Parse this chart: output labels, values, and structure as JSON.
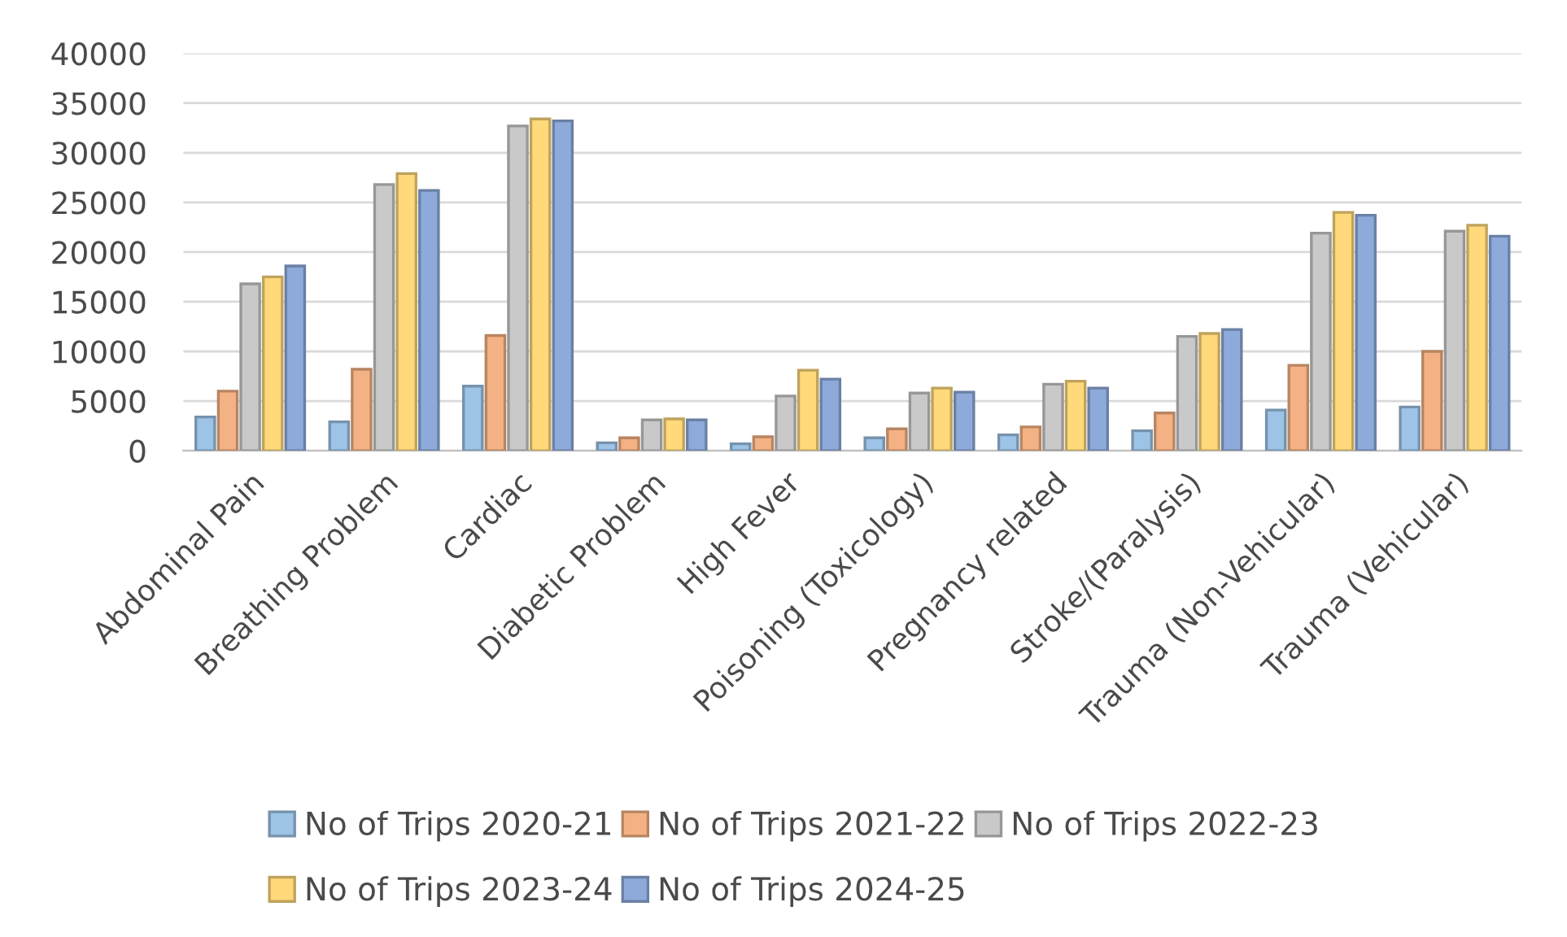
{
  "chart_data": {
    "type": "bar",
    "categories": [
      "Abdominal Pain",
      "Breathing Problem",
      "Cardiac",
      "Diabetic Problem",
      "High Fever",
      "Poisoning (Toxicology)",
      "Pregnancy related",
      "Stroke/(Paralysis)",
      "Trauma (Non-Vehicular)",
      "Trauma (Vehicular)"
    ],
    "series": [
      {
        "name": "No of Trips 2020-21",
        "color": "#9dc3e6",
        "values": [
          3400,
          2900,
          6500,
          800,
          700,
          1300,
          1600,
          2000,
          4100,
          4400
        ]
      },
      {
        "name": "No of Trips 2021-22",
        "color": "#f4b183",
        "values": [
          6000,
          8200,
          11600,
          1300,
          1400,
          2200,
          2400,
          3800,
          8600,
          10000
        ]
      },
      {
        "name": "No of Trips 2022-23",
        "color": "#c9c9c9",
        "values": [
          16800,
          26800,
          32700,
          3100,
          5500,
          5800,
          6700,
          11500,
          21900,
          22100
        ]
      },
      {
        "name": "No of Trips 2023-24",
        "color": "#ffd97a",
        "values": [
          17500,
          27900,
          33400,
          3200,
          8100,
          6300,
          7000,
          11800,
          24000,
          22700
        ]
      },
      {
        "name": "No of Trips 2024-25",
        "color": "#8eaadb",
        "values": [
          18600,
          26200,
          33200,
          3100,
          7200,
          5900,
          6300,
          12200,
          23700,
          21600
        ]
      }
    ],
    "ylim": [
      0,
      40000
    ],
    "yticks": [
      0,
      5000,
      10000,
      15000,
      20000,
      25000,
      30000,
      35000,
      40000
    ],
    "grid": "y",
    "legend": "bottom"
  }
}
